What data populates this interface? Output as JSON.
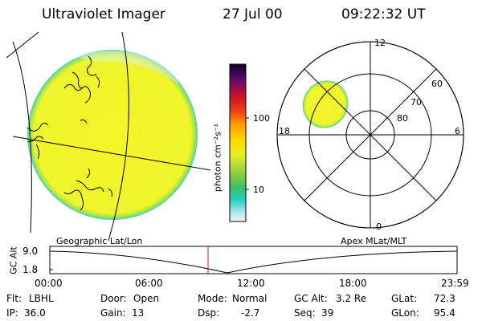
{
  "header": {
    "instrument": "Ultraviolet Imager",
    "date": "27 Jul 00",
    "time": "09:22:32 UT"
  },
  "colorbar": {
    "unit_label": "photon cm⁻²s⁻¹",
    "ticks": [
      "100",
      "10"
    ]
  },
  "polar_plot": {
    "mlt_labels": {
      "top": "12",
      "left": "18",
      "right": "6",
      "bottom": "0"
    },
    "lat_labels": [
      "60",
      "70",
      "80"
    ]
  },
  "timeline": {
    "left_title": "Geographic Lat/Lon",
    "right_title": "Apex MLat/MLT",
    "y_axis_label": "GC Alt",
    "y_ticks": [
      "9.0",
      "1.8"
    ],
    "x_ticks": [
      "00:00",
      "06:00",
      "12:00",
      "18:00",
      "23:59"
    ]
  },
  "status": {
    "row1": [
      {
        "key": "Flt:",
        "value": "LBHL"
      },
      {
        "key": "Door:",
        "value": "Open"
      },
      {
        "key": "Mode:",
        "value": "Normal"
      },
      {
        "key": "GC Alt:",
        "value": "3.2 Re"
      },
      {
        "key": "GLat:",
        "value": "72.3"
      }
    ],
    "row2": [
      {
        "key": "IP:",
        "value": "36.0"
      },
      {
        "key": "Gain:",
        "value": "13"
      },
      {
        "key": "Dsp:",
        "value": "-2.7"
      },
      {
        "key": "Seq:",
        "value": "39"
      },
      {
        "key": "GLon:",
        "value": "95.4"
      }
    ]
  },
  "colors": {
    "auroral_fill": "#f2f52a",
    "edge_cyan": "#33d6c8",
    "edge_green": "#9be14a",
    "cursor_red": "#cc2222"
  }
}
